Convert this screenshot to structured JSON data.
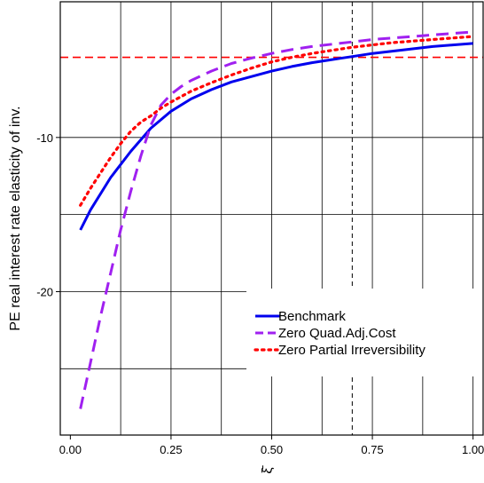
{
  "chart_data": {
    "type": "line",
    "title": "",
    "xlabel": "ξ̄",
    "ylabel": "PE real interest rate elasticity of inv.",
    "xlim": [
      -0.025,
      1.025
    ],
    "ylim": [
      -29.3,
      -1.2
    ],
    "x_ticks": [
      0.0,
      0.25,
      0.5,
      0.75,
      1.0
    ],
    "x_tick_labels": [
      "0.00",
      "0.25",
      "0.50",
      "0.75",
      "1.00"
    ],
    "y_ticks": [
      -10,
      -20
    ],
    "y_tick_labels": [
      "-10",
      "-20"
    ],
    "vertical_gridlines": [
      0.125,
      0.25,
      0.375,
      0.5,
      0.625,
      0.75,
      0.875,
      1.0
    ],
    "horizontal_gridlines": [
      -10,
      -15,
      -20,
      -25
    ],
    "reference_lines": [
      {
        "orientation": "horizontal",
        "value": -4.8,
        "color": "#ff0000",
        "style": "dashed"
      },
      {
        "orientation": "vertical",
        "value": 0.7,
        "color": "#000000",
        "style": "dashed"
      }
    ],
    "grid": true,
    "legend_position": "bottom-right",
    "series": [
      {
        "name": "Benchmark",
        "color": "#0000ee",
        "style": "solid",
        "x": [
          0.025,
          0.05,
          0.1,
          0.15,
          0.2,
          0.25,
          0.3,
          0.35,
          0.4,
          0.45,
          0.5,
          0.55,
          0.6,
          0.65,
          0.7,
          0.75,
          0.8,
          0.85,
          0.9,
          0.95,
          1.0
        ],
        "y": [
          -16.0,
          -14.7,
          -12.6,
          -10.9,
          -9.4,
          -8.3,
          -7.5,
          -6.9,
          -6.4,
          -6.05,
          -5.7,
          -5.4,
          -5.15,
          -4.95,
          -4.75,
          -4.55,
          -4.4,
          -4.25,
          -4.1,
          -4.0,
          -3.9
        ]
      },
      {
        "name": "Zero Quad.Adj.Cost",
        "color": "#a020f0",
        "style": "dashed",
        "x": [
          0.025,
          0.05,
          0.075,
          0.1,
          0.125,
          0.15,
          0.175,
          0.2,
          0.225,
          0.25,
          0.275,
          0.3,
          0.35,
          0.4,
          0.45,
          0.5,
          0.55,
          0.6,
          0.65,
          0.7,
          0.75,
          0.8,
          0.85,
          0.9,
          0.95,
          1.0
        ],
        "y": [
          -27.6,
          -24.6,
          -21.6,
          -18.8,
          -16.0,
          -13.5,
          -11.2,
          -9.2,
          -7.9,
          -7.2,
          -6.7,
          -6.3,
          -5.7,
          -5.2,
          -4.85,
          -4.55,
          -4.3,
          -4.1,
          -3.95,
          -3.8,
          -3.65,
          -3.55,
          -3.45,
          -3.35,
          -3.25,
          -3.15
        ]
      },
      {
        "name": "Zero Partial Irreversibility",
        "color": "#ff0000",
        "style": "dotted",
        "x": [
          0.025,
          0.05,
          0.075,
          0.1,
          0.125,
          0.15,
          0.175,
          0.2,
          0.225,
          0.25,
          0.3,
          0.35,
          0.4,
          0.45,
          0.5,
          0.55,
          0.6,
          0.65,
          0.7,
          0.75,
          0.8,
          0.85,
          0.9,
          0.95,
          1.0
        ],
        "y": [
          -14.4,
          -13.3,
          -12.3,
          -11.3,
          -10.4,
          -9.6,
          -9.0,
          -8.6,
          -8.1,
          -7.7,
          -7.0,
          -6.45,
          -5.95,
          -5.5,
          -5.1,
          -4.8,
          -4.55,
          -4.35,
          -4.15,
          -4.0,
          -3.85,
          -3.75,
          -3.65,
          -3.55,
          -3.45
        ]
      }
    ]
  }
}
